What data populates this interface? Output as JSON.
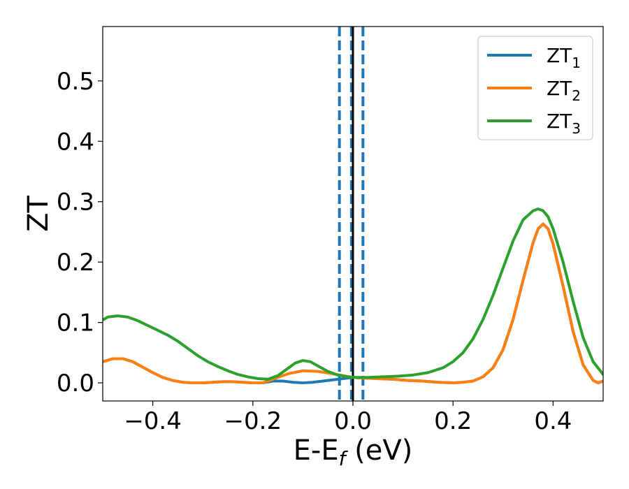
{
  "chart_data": {
    "type": "line",
    "title": "",
    "xlabel": {
      "main": "E-E",
      "sub": "f",
      "tail": " (eV)"
    },
    "ylabel": "ZT",
    "xlim": [
      -0.5,
      0.5
    ],
    "ylim": [
      -0.03,
      0.59
    ],
    "xticks": [
      -0.4,
      -0.2,
      0.0,
      0.2,
      0.4
    ],
    "xtick_labels": [
      "−0.4",
      "−0.2",
      "0.0",
      "0.2",
      "0.4"
    ],
    "yticks": [
      0.0,
      0.1,
      0.2,
      0.3,
      0.4,
      0.5
    ],
    "ytick_labels": [
      "0.0",
      "0.1",
      "0.2",
      "0.3",
      "0.4",
      "0.5"
    ],
    "grid": false,
    "legend_position": "top-right",
    "vertical_lines": [
      {
        "x": -0.027,
        "style": "dashed",
        "color": "#1f77b4"
      },
      {
        "x": -0.003,
        "style": "dashed",
        "color": "#1f77b4"
      },
      {
        "x": 0.0,
        "style": "solid",
        "color": "#000000"
      },
      {
        "x": 0.02,
        "style": "dashed",
        "color": "#1f77b4"
      }
    ],
    "series": [
      {
        "name": "ZT",
        "subscript": "1",
        "color": "#1f77b4",
        "points": [
          [
            -0.5,
            0.035
          ],
          [
            -0.48,
            0.04
          ],
          [
            -0.46,
            0.04
          ],
          [
            -0.44,
            0.035
          ],
          [
            -0.42,
            0.026
          ],
          [
            -0.4,
            0.017
          ],
          [
            -0.38,
            0.009
          ],
          [
            -0.36,
            0.004
          ],
          [
            -0.34,
            0.001
          ],
          [
            -0.32,
            0.0
          ],
          [
            -0.3,
            0.0
          ],
          [
            -0.28,
            0.001
          ],
          [
            -0.26,
            0.002
          ],
          [
            -0.24,
            0.002
          ],
          [
            -0.22,
            0.001
          ],
          [
            -0.2,
            0.0
          ],
          [
            -0.18,
            0.0
          ],
          [
            -0.16,
            0.003
          ],
          [
            -0.14,
            0.003
          ],
          [
            -0.12,
            0.001
          ],
          [
            -0.1,
            0.0
          ],
          [
            -0.08,
            0.001
          ],
          [
            -0.06,
            0.003
          ],
          [
            -0.04,
            0.005
          ],
          [
            -0.02,
            0.007
          ],
          [
            0.0,
            0.009
          ],
          [
            0.02,
            0.008
          ],
          [
            0.05,
            0.007
          ],
          [
            0.08,
            0.006
          ],
          [
            0.11,
            0.004
          ],
          [
            0.14,
            0.003
          ],
          [
            0.17,
            0.001
          ],
          [
            0.2,
            0.0
          ],
          [
            0.22,
            0.001
          ],
          [
            0.24,
            0.003
          ],
          [
            0.26,
            0.01
          ],
          [
            0.28,
            0.025
          ],
          [
            0.3,
            0.055
          ],
          [
            0.32,
            0.105
          ],
          [
            0.34,
            0.17
          ],
          [
            0.36,
            0.232
          ],
          [
            0.37,
            0.255
          ],
          [
            0.38,
            0.263
          ],
          [
            0.39,
            0.255
          ],
          [
            0.4,
            0.23
          ],
          [
            0.42,
            0.16
          ],
          [
            0.44,
            0.085
          ],
          [
            0.46,
            0.03
          ],
          [
            0.48,
            0.004
          ],
          [
            0.49,
            0.0
          ],
          [
            0.5,
            0.003
          ]
        ]
      },
      {
        "name": "ZT",
        "subscript": "2",
        "color": "#ff7f0e",
        "points": [
          [
            -0.5,
            0.035
          ],
          [
            -0.48,
            0.04
          ],
          [
            -0.46,
            0.04
          ],
          [
            -0.44,
            0.035
          ],
          [
            -0.42,
            0.026
          ],
          [
            -0.4,
            0.017
          ],
          [
            -0.38,
            0.009
          ],
          [
            -0.36,
            0.004
          ],
          [
            -0.34,
            0.001
          ],
          [
            -0.32,
            0.0
          ],
          [
            -0.3,
            0.0
          ],
          [
            -0.28,
            0.001
          ],
          [
            -0.26,
            0.002
          ],
          [
            -0.24,
            0.002
          ],
          [
            -0.22,
            0.001
          ],
          [
            -0.2,
            0.0
          ],
          [
            -0.18,
            0.0
          ],
          [
            -0.16,
            0.006
          ],
          [
            -0.13,
            0.015
          ],
          [
            -0.1,
            0.02
          ],
          [
            -0.07,
            0.019
          ],
          [
            -0.04,
            0.015
          ],
          [
            -0.02,
            0.012
          ],
          [
            0.0,
            0.009
          ],
          [
            0.02,
            0.008
          ],
          [
            0.05,
            0.007
          ],
          [
            0.08,
            0.006
          ],
          [
            0.11,
            0.004
          ],
          [
            0.14,
            0.003
          ],
          [
            0.17,
            0.001
          ],
          [
            0.2,
            0.0
          ],
          [
            0.22,
            0.001
          ],
          [
            0.24,
            0.003
          ],
          [
            0.26,
            0.01
          ],
          [
            0.28,
            0.025
          ],
          [
            0.3,
            0.055
          ],
          [
            0.32,
            0.105
          ],
          [
            0.34,
            0.17
          ],
          [
            0.36,
            0.232
          ],
          [
            0.37,
            0.255
          ],
          [
            0.38,
            0.263
          ],
          [
            0.39,
            0.255
          ],
          [
            0.4,
            0.23
          ],
          [
            0.42,
            0.16
          ],
          [
            0.44,
            0.085
          ],
          [
            0.46,
            0.03
          ],
          [
            0.48,
            0.004
          ],
          [
            0.49,
            0.0
          ],
          [
            0.5,
            0.003
          ]
        ]
      },
      {
        "name": "ZT",
        "subscript": "3",
        "color": "#2ca02c",
        "points": [
          [
            -0.5,
            0.104
          ],
          [
            -0.49,
            0.109
          ],
          [
            -0.47,
            0.111
          ],
          [
            -0.45,
            0.109
          ],
          [
            -0.43,
            0.103
          ],
          [
            -0.41,
            0.095
          ],
          [
            -0.39,
            0.087
          ],
          [
            -0.37,
            0.079
          ],
          [
            -0.35,
            0.069
          ],
          [
            -0.33,
            0.057
          ],
          [
            -0.31,
            0.045
          ],
          [
            -0.29,
            0.035
          ],
          [
            -0.27,
            0.027
          ],
          [
            -0.25,
            0.02
          ],
          [
            -0.23,
            0.014
          ],
          [
            -0.21,
            0.01
          ],
          [
            -0.19,
            0.007
          ],
          [
            -0.17,
            0.006
          ],
          [
            -0.15,
            0.012
          ],
          [
            -0.13,
            0.024
          ],
          [
            -0.115,
            0.033
          ],
          [
            -0.1,
            0.037
          ],
          [
            -0.085,
            0.035
          ],
          [
            -0.07,
            0.028
          ],
          [
            -0.05,
            0.019
          ],
          [
            -0.03,
            0.013
          ],
          [
            -0.01,
            0.01
          ],
          [
            0.0,
            0.009
          ],
          [
            0.03,
            0.009
          ],
          [
            0.06,
            0.01
          ],
          [
            0.09,
            0.011
          ],
          [
            0.12,
            0.013
          ],
          [
            0.15,
            0.017
          ],
          [
            0.18,
            0.025
          ],
          [
            0.2,
            0.035
          ],
          [
            0.22,
            0.05
          ],
          [
            0.24,
            0.073
          ],
          [
            0.26,
            0.105
          ],
          [
            0.28,
            0.145
          ],
          [
            0.3,
            0.19
          ],
          [
            0.32,
            0.235
          ],
          [
            0.34,
            0.27
          ],
          [
            0.36,
            0.285
          ],
          [
            0.37,
            0.288
          ],
          [
            0.38,
            0.285
          ],
          [
            0.39,
            0.275
          ],
          [
            0.4,
            0.255
          ],
          [
            0.42,
            0.2
          ],
          [
            0.44,
            0.135
          ],
          [
            0.46,
            0.075
          ],
          [
            0.48,
            0.035
          ],
          [
            0.5,
            0.014
          ]
        ]
      }
    ]
  }
}
